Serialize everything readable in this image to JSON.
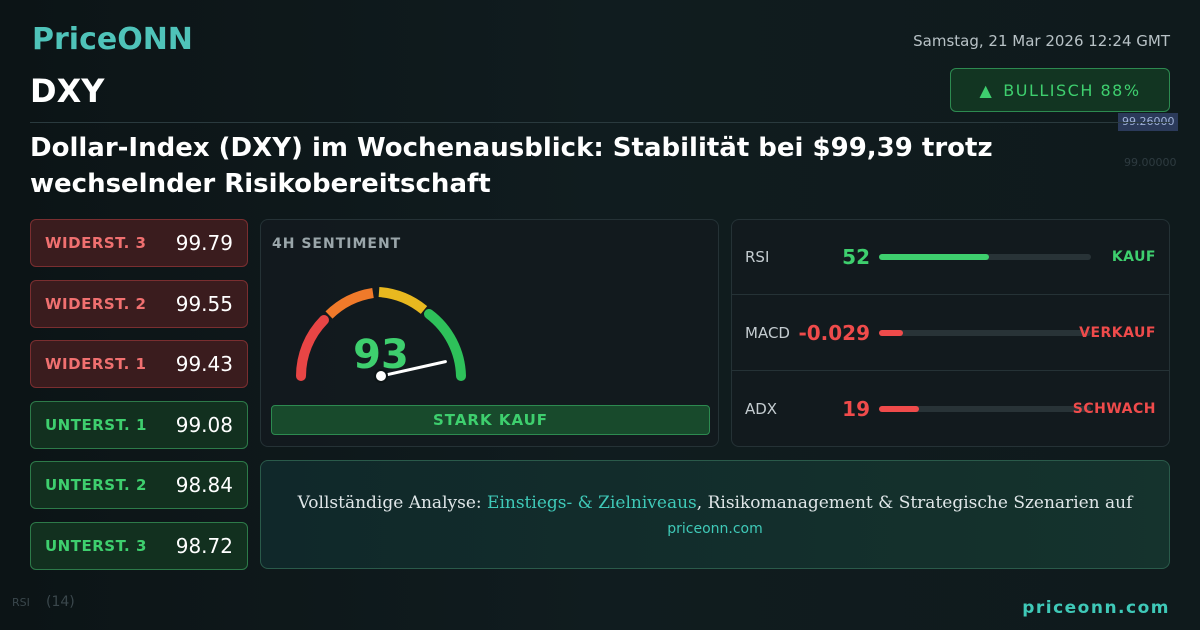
{
  "brand": "PriceONN",
  "date": "Samstag, 21 Mar 2026 12:24 GMT",
  "symbol": "DXY",
  "badge": {
    "label": "BULLISCH 88%",
    "color": "#3ecf6e"
  },
  "headline": "Dollar-Index (DXY) im Wochenausblick: Stabilität bei $99,39 trotz wechselnder Risikobereitschaft",
  "background": {
    "labels": [
      "99.26000",
      "99.00000",
      "RSI",
      "(14)"
    ]
  },
  "levels": [
    {
      "label": "WIDERST. 3",
      "value": "99.79",
      "kind": "resistance"
    },
    {
      "label": "WIDERST. 2",
      "value": "99.55",
      "kind": "resistance"
    },
    {
      "label": "WIDERST. 1",
      "value": "99.43",
      "kind": "resistance"
    },
    {
      "label": "UNTERST. 1",
      "value": "99.08",
      "kind": "support"
    },
    {
      "label": "UNTERST. 2",
      "value": "98.84",
      "kind": "support"
    },
    {
      "label": "UNTERST. 3",
      "value": "98.72",
      "kind": "support"
    }
  ],
  "sentiment": {
    "title": "4H SENTIMENT",
    "value": 93,
    "range": [
      0,
      100
    ],
    "label": "STARK KAUF"
  },
  "indicators": [
    {
      "name": "RSI",
      "value": 52,
      "signal": "KAUF",
      "color": "#3ecf6e"
    },
    {
      "name": "MACD",
      "value": -0.029,
      "signal": "VERKAUF",
      "color": "#ef4b4b"
    },
    {
      "name": "ADX",
      "value": 19,
      "signal": "SCHWACH",
      "color": "#ef4b4b"
    }
  ],
  "cta": {
    "prefix": "Vollständige Analyse: ",
    "highlight": "Einstiegs- & Zielniveaus",
    "suffix": ", Risikomanagement & Strategische Szenarien auf",
    "link": "priceonn.com"
  },
  "footer": "priceonn.com"
}
